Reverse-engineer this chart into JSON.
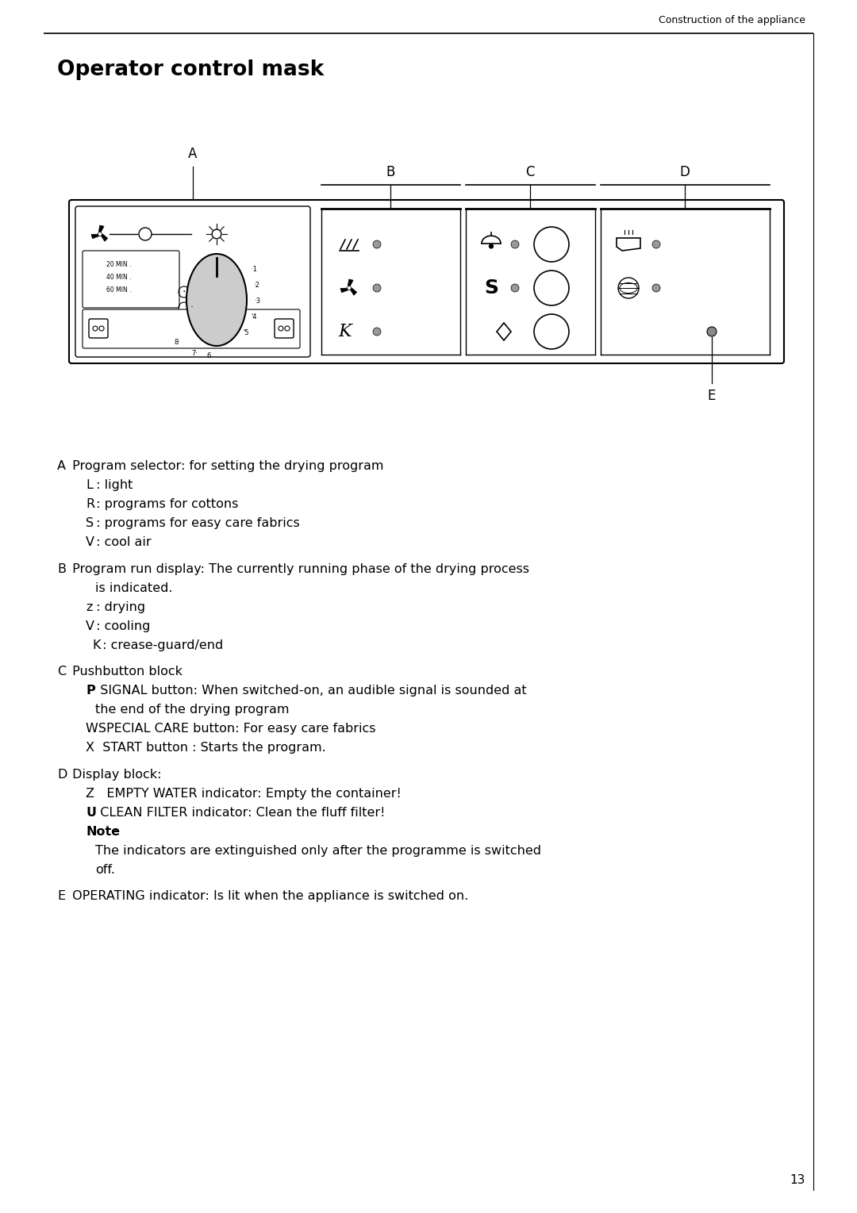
{
  "figsize": [
    10.8,
    15.29
  ],
  "dpi": 100,
  "bg_color": "#ffffff",
  "header_text": "Construction of the appliance",
  "section_title": "Operator control mask",
  "page_number": "13",
  "body_lines": [
    {
      "type": "main",
      "letter": "A",
      "text": " Program selector: for setting the drying program"
    },
    {
      "type": "sub",
      "letter": "L",
      "text": " : light"
    },
    {
      "type": "sub",
      "letter": "R",
      "text": " : programs for cottons"
    },
    {
      "type": "sub",
      "letter": "S",
      "text": " : programs for easy care fabrics"
    },
    {
      "type": "sub",
      "letter": "V",
      "text": " : cool air"
    },
    {
      "type": "gap"
    },
    {
      "type": "main",
      "letter": "B",
      "text": " Program run display: The currently running phase of the drying process"
    },
    {
      "type": "cont",
      "letter": "",
      "text": "is indicated."
    },
    {
      "type": "sub",
      "letter": "z",
      "text": " : drying"
    },
    {
      "type": "sub",
      "letter": "V",
      "text": " : cooling"
    },
    {
      "type": "sub2",
      "letter": "K",
      "text": " : crease-guard/end"
    },
    {
      "type": "gap"
    },
    {
      "type": "main",
      "letter": "C",
      "text": " Pushbutton block"
    },
    {
      "type": "sub",
      "letter": "P",
      "bold_letter": true,
      "text": "  SIGNAL button: When switched-on, an audible signal is sounded at"
    },
    {
      "type": "cont",
      "letter": "",
      "text": "the end of the drying program"
    },
    {
      "type": "sub",
      "letter": "",
      "text": "WSPECIAL CARE button: For easy care fabrics"
    },
    {
      "type": "sub",
      "letter": "",
      "text": "X  START button : Starts the program."
    },
    {
      "type": "gap"
    },
    {
      "type": "main",
      "letter": "D",
      "text": " Display block:"
    },
    {
      "type": "sub",
      "letter": "",
      "text": "Z   EMPTY WATER indicator: Empty the container!"
    },
    {
      "type": "sub",
      "letter": "U",
      "bold_letter": true,
      "text": "  CLEAN FILTER indicator: Clean the fluff filter!"
    },
    {
      "type": "sub",
      "letter": "Note",
      "bold_letter": true,
      "text": ":"
    },
    {
      "type": "cont",
      "letter": "",
      "text": "The indicators are extinguished only after the programme is switched"
    },
    {
      "type": "cont",
      "letter": "",
      "text": "off."
    },
    {
      "type": "gap"
    },
    {
      "type": "main",
      "letter": "E",
      "text": " OPERATING indicator: Is lit when the appliance is switched on."
    }
  ]
}
